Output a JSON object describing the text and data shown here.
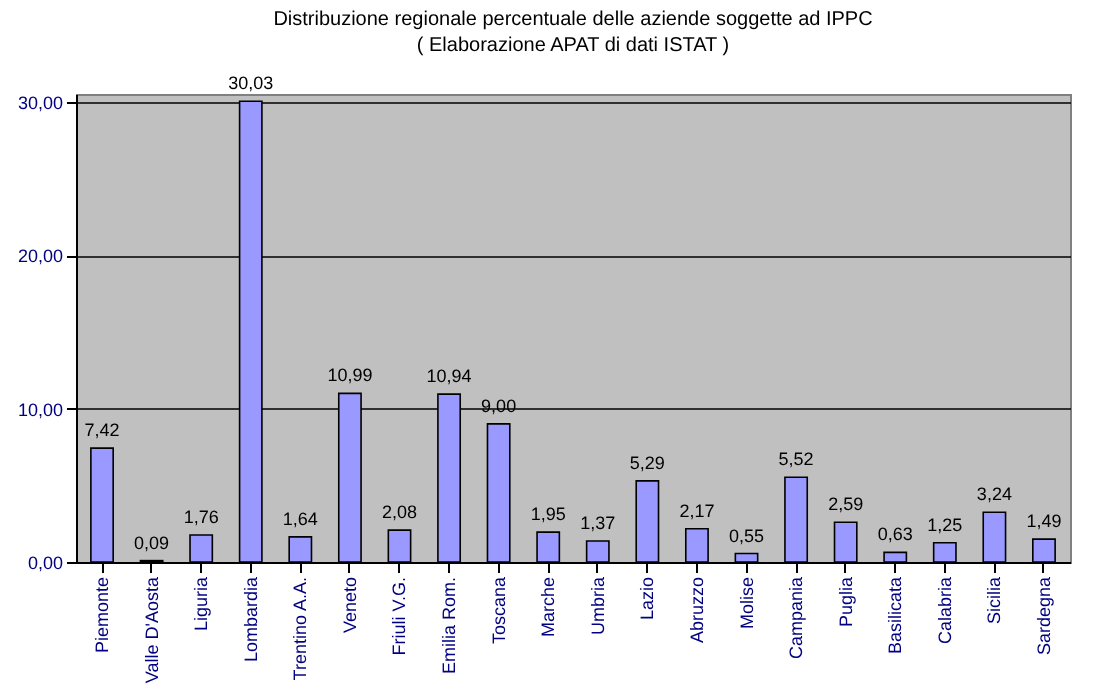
{
  "chart_data": {
    "type": "bar",
    "title": "Distribuzione regionale percentuale delle aziende soggette ad IPPC",
    "subtitle": "( Elaborazione APAT di dati ISTAT )",
    "categories": [
      "Piemonte",
      "Valle D'Aosta",
      "Liguria",
      "Lombardia",
      "Trentino A.A.",
      "Veneto",
      "Friuli V.G.",
      "Emilia Rom.",
      "Toscana",
      "Marche",
      "Umbria",
      "Lazio",
      "Abruzzo",
      "Molise",
      "Campania",
      "Puglia",
      "Basilicata",
      "Calabria",
      "Sicilia",
      "Sardegna"
    ],
    "values": [
      7.42,
      0.09,
      1.76,
      30.03,
      1.64,
      10.99,
      2.08,
      10.94,
      9.0,
      1.95,
      1.37,
      5.29,
      2.17,
      0.55,
      5.52,
      2.59,
      0.63,
      1.25,
      3.24,
      1.49
    ],
    "value_labels": [
      "7,42",
      "0,09",
      "1,76",
      "30,03",
      "1,64",
      "10,99",
      "2,08",
      "10,94",
      "9,00",
      "1,95",
      "1,37",
      "5,29",
      "2,17",
      "0,55",
      "5,52",
      "2,59",
      "0,63",
      "1,25",
      "3,24",
      "1,49"
    ],
    "color": "#9999ff",
    "ylim": [
      0,
      30.5
    ],
    "yticks": [
      {
        "value": 0,
        "label": "0,00"
      },
      {
        "value": 10,
        "label": "10,00"
      },
      {
        "value": 20,
        "label": "20,00"
      },
      {
        "value": 30,
        "label": "30,00"
      }
    ],
    "grid": "y"
  }
}
